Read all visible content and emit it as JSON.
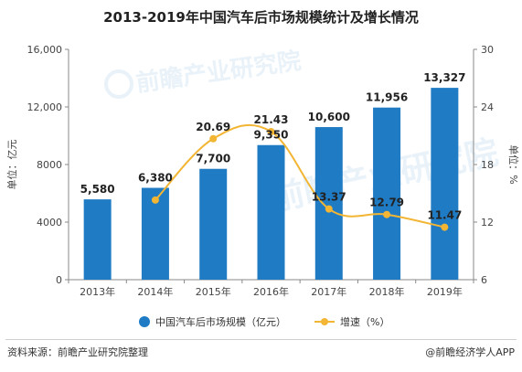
{
  "title": "2013-2019年中国汽车后市场规模统计及增长情况",
  "chart_data": {
    "type": "bar",
    "categories": [
      "2013年",
      "2014年",
      "2015年",
      "2016年",
      "2017年",
      "2018年",
      "2019年"
    ],
    "series": [
      {
        "name": "中国汽车后市场规模（亿元）",
        "type": "bar",
        "axis": "left",
        "values": [
          5580,
          6380,
          7700,
          9350,
          10600,
          11956,
          13327
        ],
        "labels": [
          "5,580",
          "6,380",
          "7,700",
          "9,350",
          "10,600",
          "11,956",
          "13,327"
        ]
      },
      {
        "name": "增速（%）",
        "type": "line",
        "axis": "right",
        "values": [
          null,
          14.3,
          20.69,
          21.43,
          13.37,
          12.79,
          11.47
        ],
        "labels": [
          "",
          "",
          "20.69",
          "21.43",
          "13.37",
          "12.79",
          "11.47"
        ]
      }
    ],
    "ylabel_left": "单位：亿元",
    "ylabel_right": "单位：%",
    "ylim_left": [
      0,
      16000
    ],
    "yticks_left": [
      "0",
      "4000",
      "8000",
      "12,000",
      "16,000"
    ],
    "ylim_right": [
      6,
      30
    ],
    "yticks_right": [
      "6",
      "12",
      "18",
      "24",
      "30"
    ],
    "grid": false,
    "legend": "bottom",
    "colors": {
      "bar": "#1f7bc4",
      "line": "#f2b534"
    }
  },
  "watermark": "前瞻产业研究院",
  "footer": {
    "source": "资料来源：前瞻产业研究院整理",
    "credit": "@前瞻经济学人APP"
  }
}
